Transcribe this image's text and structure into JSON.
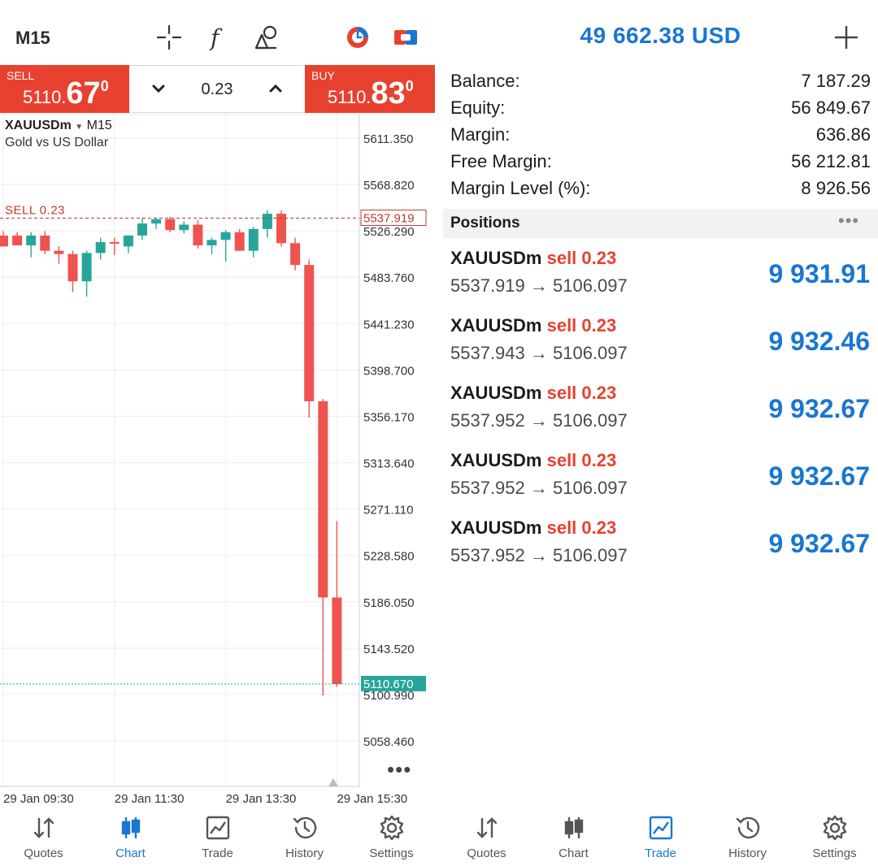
{
  "chart_screen": {
    "timeframe": "M15",
    "sell": {
      "label": "SELL",
      "price_prefix": "5110.",
      "price_big": "67",
      "price_sup": "0"
    },
    "buy": {
      "label": "BUY",
      "price_prefix": "5110.",
      "price_big": "83",
      "price_sup": "0"
    },
    "volume": "0.23",
    "symbol": "XAUUSDm",
    "symbol_tf": "M15",
    "description": "Gold vs US Dollar",
    "more": "•••"
  },
  "chart_data": {
    "type": "candlestick",
    "symbol": "XAUUSDm",
    "timeframe": "M15",
    "ylim": [
      5040,
      5640
    ],
    "y_ticks": [
      "5611.350",
      "5568.820",
      "5526.290",
      "5483.760",
      "5441.230",
      "5398.700",
      "5356.170",
      "5313.640",
      "5271.110",
      "5228.580",
      "5186.050",
      "5143.520",
      "5100.990",
      "5058.460"
    ],
    "y_tick_values": [
      5611.35,
      5568.82,
      5526.29,
      5483.76,
      5441.23,
      5398.7,
      5356.17,
      5313.64,
      5271.11,
      5228.58,
      5186.05,
      5143.52,
      5100.99,
      5058.46
    ],
    "x_ticks": [
      "29 Jan 09:30",
      "29 Jan 11:30",
      "29 Jan 13:30",
      "29 Jan 15:30"
    ],
    "x_tick_index": [
      0,
      8,
      16,
      24
    ],
    "candles": [
      {
        "o": 5522,
        "h": 5526,
        "l": 5512,
        "c": 5512
      },
      {
        "o": 5522,
        "h": 5525,
        "l": 5513,
        "c": 5513
      },
      {
        "o": 5513,
        "h": 5525,
        "l": 5502,
        "c": 5522
      },
      {
        "o": 5522,
        "h": 5526,
        "l": 5505,
        "c": 5508
      },
      {
        "o": 5508,
        "h": 5512,
        "l": 5496,
        "c": 5505
      },
      {
        "o": 5505,
        "h": 5508,
        "l": 5470,
        "c": 5480
      },
      {
        "o": 5480,
        "h": 5508,
        "l": 5466,
        "c": 5506
      },
      {
        "o": 5506,
        "h": 5520,
        "l": 5500,
        "c": 5516
      },
      {
        "o": 5516,
        "h": 5520,
        "l": 5504,
        "c": 5515
      },
      {
        "o": 5512,
        "h": 5522,
        "l": 5506,
        "c": 5522
      },
      {
        "o": 5522,
        "h": 5538,
        "l": 5518,
        "c": 5533
      },
      {
        "o": 5533,
        "h": 5538,
        "l": 5528,
        "c": 5537
      },
      {
        "o": 5537,
        "h": 5539,
        "l": 5525,
        "c": 5527
      },
      {
        "o": 5527,
        "h": 5535,
        "l": 5524,
        "c": 5532
      },
      {
        "o": 5532,
        "h": 5536,
        "l": 5510,
        "c": 5513
      },
      {
        "o": 5513,
        "h": 5520,
        "l": 5505,
        "c": 5518
      },
      {
        "o": 5518,
        "h": 5527,
        "l": 5498,
        "c": 5525
      },
      {
        "o": 5525,
        "h": 5528,
        "l": 5508,
        "c": 5508
      },
      {
        "o": 5508,
        "h": 5530,
        "l": 5502,
        "c": 5528
      },
      {
        "o": 5528,
        "h": 5545,
        "l": 5520,
        "c": 5542
      },
      {
        "o": 5542,
        "h": 5545,
        "l": 5512,
        "c": 5515
      },
      {
        "o": 5515,
        "h": 5520,
        "l": 5490,
        "c": 5495
      },
      {
        "o": 5495,
        "h": 5500,
        "l": 5355,
        "c": 5370
      },
      {
        "o": 5370,
        "h": 5372,
        "l": 5100,
        "c": 5190
      },
      {
        "o": 5190,
        "h": 5260,
        "l": 5108,
        "c": 5110.67
      }
    ],
    "position_line": {
      "label": "SELL 0.23",
      "value": 5537.919,
      "value_label": "5537.919"
    },
    "bid_line": {
      "value": 5110.67,
      "value_label": "5110.670"
    },
    "colors": {
      "up": "#26a69a",
      "down": "#ef5350",
      "position": "#c0392b",
      "bid": "#26a69a"
    }
  },
  "trade_screen": {
    "equity_header": "49 662.38 USD",
    "account": [
      {
        "label": "Balance:",
        "value": "7 187.29"
      },
      {
        "label": "Equity:",
        "value": "56 849.67"
      },
      {
        "label": "Margin:",
        "value": "636.86"
      },
      {
        "label": "Free Margin:",
        "value": "56 212.81"
      },
      {
        "label": "Margin Level (%):",
        "value": "8 926.56"
      }
    ],
    "positions_header": "Positions",
    "more": "•••",
    "positions": [
      {
        "symbol": "XAUUSDm",
        "side": "sell 0.23",
        "prices": "5537.919 → 5106.097",
        "profit": "9 931.91"
      },
      {
        "symbol": "XAUUSDm",
        "side": "sell 0.23",
        "prices": "5537.943 → 5106.097",
        "profit": "9 932.46"
      },
      {
        "symbol": "XAUUSDm",
        "side": "sell 0.23",
        "prices": "5537.952 → 5106.097",
        "profit": "9 932.67"
      },
      {
        "symbol": "XAUUSDm",
        "side": "sell 0.23",
        "prices": "5537.952 → 5106.097",
        "profit": "9 932.67"
      },
      {
        "symbol": "XAUUSDm",
        "side": "sell 0.23",
        "prices": "5537.952 → 5106.097",
        "profit": "9 932.67"
      }
    ]
  },
  "nav": {
    "quotes": "Quotes",
    "chart": "Chart",
    "trade": "Trade",
    "history": "History",
    "settings": "Settings",
    "active_left": "chart",
    "active_right": "trade",
    "accent": "#1976d2"
  }
}
